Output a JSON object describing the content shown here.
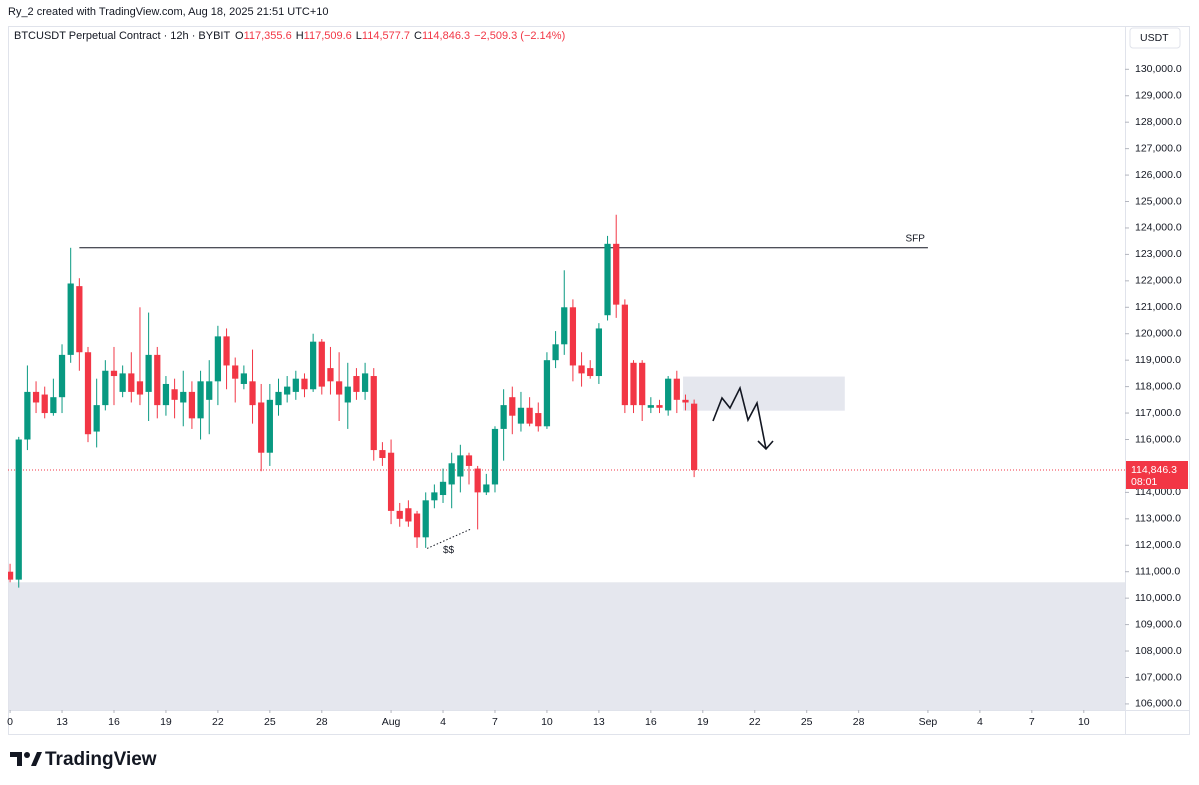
{
  "header": {
    "attribution": "Ry_2 created with TradingView.com, Aug 18, 2025 21:51 UTC+10"
  },
  "legend": {
    "symbol": "BTCUSDT Perpetual Contract · 12h · BYBIT",
    "fields": [
      {
        "key": "O",
        "text": "117,355.6"
      },
      {
        "key": "H",
        "text": "117,509.6"
      },
      {
        "key": "L",
        "text": "114,577.7"
      },
      {
        "key": "C",
        "text": "114,846.3"
      }
    ],
    "change": "−2,509.3 (−2.14%)"
  },
  "currency": "USDT",
  "brand": "TradingView",
  "chart_data": {
    "type": "candlestick",
    "up_color": "#089981",
    "down_color": "#f23645",
    "x": [
      0,
      0.5,
      1,
      1.5,
      2,
      2.5,
      3,
      3.5,
      4,
      4.5,
      5,
      5.5,
      6,
      6.5,
      7,
      7.5,
      8,
      8.5,
      9,
      9.5,
      10,
      10.5,
      11,
      11.5,
      12,
      12.5,
      13,
      13.5,
      14,
      14.5,
      15,
      15.5,
      16,
      16.5,
      17,
      17.5,
      18,
      18.5,
      19,
      19.5,
      20,
      20.5,
      21,
      21.5,
      22,
      22.5,
      23,
      23.5,
      24,
      24.5,
      25,
      25.5,
      26,
      26.5,
      27,
      27.5,
      28,
      28.5,
      29,
      29.5,
      30,
      30.5,
      31,
      31.5,
      32,
      32.5,
      33,
      33.5,
      34,
      34.5,
      35,
      35.5,
      36,
      36.5,
      37,
      37.5,
      38,
      38.5,
      39,
      39.5
    ],
    "open": [
      111000,
      110700,
      116000,
      117800,
      117700,
      117000,
      117600,
      119200,
      121800,
      119300,
      116300,
      117300,
      118600,
      117800,
      118500,
      118200,
      117800,
      119200,
      117300,
      117900,
      117400,
      117800,
      116800,
      117500,
      118200,
      119900,
      118800,
      118100,
      118200,
      117400,
      115500,
      117300,
      117700,
      117800,
      118300,
      117900,
      119700,
      118700,
      118200,
      117400,
      118400,
      117800,
      118400,
      115600,
      115500,
      113300,
      113400,
      113200,
      112300,
      113700,
      113900,
      114300,
      114600,
      115400,
      114900,
      114000,
      114300,
      116400,
      117600,
      116600,
      117200,
      117000,
      116500,
      119000,
      119600,
      121000,
      118800,
      118700,
      118400,
      120700,
      123400,
      121100,
      118900,
      118900,
      117200,
      117300,
      117100,
      118300,
      117500,
      117355.6
    ],
    "high": [
      111300,
      116100,
      118800,
      118200,
      118000,
      118300,
      119600,
      123250,
      122100,
      119500,
      118300,
      119000,
      119500,
      118800,
      119300,
      121000,
      120800,
      119500,
      118400,
      118300,
      118600,
      118200,
      118600,
      119000,
      120300,
      120200,
      119100,
      118800,
      119400,
      118100,
      118100,
      118300,
      118400,
      118600,
      118500,
      120000,
      119800,
      119500,
      119300,
      118900,
      118700,
      118900,
      118700,
      115900,
      116000,
      113600,
      113700,
      113300,
      114000,
      114300,
      114900,
      115500,
      115800,
      115500,
      115000,
      114700,
      116500,
      117900,
      118000,
      117800,
      117600,
      117400,
      119300,
      120100,
      122400,
      121300,
      119300,
      119000,
      120400,
      123700,
      124500,
      121300,
      119000,
      119000,
      117600,
      117500,
      118400,
      118600,
      117700,
      117509.6
    ],
    "low": [
      110600,
      110400,
      115600,
      117000,
      116800,
      116900,
      117000,
      118900,
      118600,
      115900,
      115700,
      117100,
      117300,
      117600,
      117400,
      117300,
      116700,
      116800,
      116900,
      116800,
      116500,
      116400,
      116000,
      116200,
      117300,
      117900,
      117400,
      117900,
      116600,
      114800,
      115000,
      116900,
      117400,
      117500,
      117600,
      117800,
      117700,
      117700,
      116700,
      116400,
      117500,
      117500,
      115200,
      115000,
      112800,
      112700,
      112700,
      111900,
      111900,
      113400,
      113600,
      113400,
      114000,
      114300,
      112600,
      113900,
      114000,
      115200,
      116200,
      116300,
      116500,
      116300,
      116400,
      118700,
      119200,
      118200,
      118000,
      118300,
      118100,
      120500,
      120600,
      117000,
      117000,
      116700,
      117000,
      117000,
      116900,
      117000,
      117100,
      114577.7
    ],
    "close": [
      110700,
      116000,
      117800,
      117400,
      117000,
      117600,
      119200,
      121900,
      119300,
      116200,
      117300,
      118600,
      118400,
      118500,
      117800,
      117700,
      119200,
      117300,
      118100,
      117500,
      117800,
      116800,
      118200,
      118200,
      119900,
      118800,
      118300,
      118500,
      117300,
      115500,
      117500,
      117800,
      118000,
      118300,
      117900,
      119700,
      118000,
      118200,
      117700,
      118000,
      117800,
      118500,
      115600,
      115300,
      113300,
      113000,
      112900,
      112300,
      113700,
      114000,
      114400,
      115100,
      115400,
      115000,
      114000,
      114300,
      116400,
      117300,
      116900,
      117200,
      116600,
      116500,
      119000,
      119600,
      121000,
      118800,
      118500,
      118400,
      120200,
      123400,
      121100,
      117300,
      117300,
      117300,
      117300,
      117200,
      118300,
      117500,
      117400,
      114846.3
    ],
    "xlim": [
      -0.12,
      64.38
    ],
    "ylim": [
      105770,
      131600
    ],
    "yticks": [
      {
        "value": 106000,
        "label": "106,000.0"
      },
      {
        "value": 107000,
        "label": "107,000.0"
      },
      {
        "value": 108000,
        "label": "108,000.0"
      },
      {
        "value": 109000,
        "label": "109,000.0"
      },
      {
        "value": 110000,
        "label": "110,000.0"
      },
      {
        "value": 111000,
        "label": "111,000.0"
      },
      {
        "value": 112000,
        "label": "112,000.0"
      },
      {
        "value": 113000,
        "label": "113,000.0"
      },
      {
        "value": 114000,
        "label": "114,000.0"
      },
      {
        "value": 116000,
        "label": "116,000.0"
      },
      {
        "value": 117000,
        "label": "117,000.0"
      },
      {
        "value": 118000,
        "label": "118,000.0"
      },
      {
        "value": 119000,
        "label": "119,000.0"
      },
      {
        "value": 120000,
        "label": "120,000.0"
      },
      {
        "value": 121000,
        "label": "121,000.0"
      },
      {
        "value": 122000,
        "label": "122,000.0"
      },
      {
        "value": 123000,
        "label": "123,000.0"
      },
      {
        "value": 124000,
        "label": "124,000.0"
      },
      {
        "value": 125000,
        "label": "125,000.0"
      },
      {
        "value": 126000,
        "label": "126,000.0"
      },
      {
        "value": 127000,
        "label": "127,000.0"
      },
      {
        "value": 128000,
        "label": "128,000.0"
      },
      {
        "value": 129000,
        "label": "129,000.0"
      },
      {
        "value": 130000,
        "label": "130,000.0"
      }
    ],
    "xticks": [
      {
        "value": 0,
        "label": "0"
      },
      {
        "value": 3,
        "label": "13"
      },
      {
        "value": 6,
        "label": "16"
      },
      {
        "value": 9,
        "label": "19"
      },
      {
        "value": 12,
        "label": "22"
      },
      {
        "value": 15,
        "label": "25"
      },
      {
        "value": 18,
        "label": "28"
      },
      {
        "value": 22,
        "label": "Aug"
      },
      {
        "value": 25,
        "label": "4"
      },
      {
        "value": 28,
        "label": "7"
      },
      {
        "value": 31,
        "label": "10"
      },
      {
        "value": 34,
        "label": "13"
      },
      {
        "value": 37,
        "label": "16"
      },
      {
        "value": 40,
        "label": "19"
      },
      {
        "value": 43,
        "label": "22"
      },
      {
        "value": 46,
        "label": "25"
      },
      {
        "value": 49,
        "label": "28"
      },
      {
        "value": 53,
        "label": "Sep"
      },
      {
        "value": 56,
        "label": "4"
      },
      {
        "value": 59,
        "label": "7"
      },
      {
        "value": 62,
        "label": "10"
      }
    ],
    "last_price": {
      "value": 114846.3,
      "label": "114,846.3",
      "countdown": "08:01"
    },
    "level": {
      "price": 123250,
      "from": 4,
      "to": 53,
      "text": "SFP"
    },
    "zones": [
      {
        "high": 118380,
        "low": 117090,
        "from": 38.86,
        "to": 48.2
      },
      {
        "high": 110600,
        "low": 105770,
        "from": -0.12,
        "to": 64.38
      }
    ],
    "sweep": {
      "text": "$$",
      "from": [
        24.08,
        111880
      ],
      "to": [
        26.56,
        112600
      ]
    }
  }
}
